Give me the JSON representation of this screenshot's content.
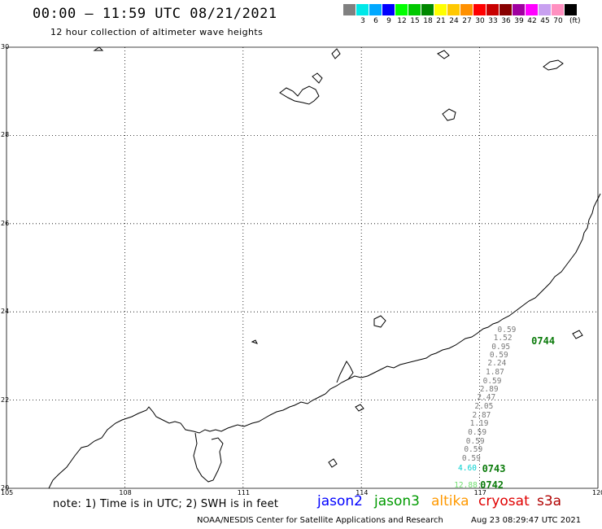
{
  "header": {
    "title": "00:00 – 11:59 UTC 08/21/2021",
    "subtitle": "12 hour collection of altimeter wave heights"
  },
  "legend": {
    "colors": [
      "#808080",
      "#00e8e8",
      "#00a8ff",
      "#0000ff",
      "#00ff00",
      "#00c800",
      "#008800",
      "#ffff00",
      "#ffc800",
      "#ff9000",
      "#ff0000",
      "#c80000",
      "#880000",
      "#a000a0",
      "#ff00ff",
      "#c8a0f0",
      "#ff90c0",
      "#000000"
    ],
    "labels": [
      "3",
      "6",
      "9",
      "12",
      "15",
      "18",
      "21",
      "24",
      "27",
      "30",
      "33",
      "36",
      "39",
      "42",
      "45",
      "70"
    ],
    "unit": "(ft)"
  },
  "map": {
    "lat_labels": [
      "30",
      "28",
      "26",
      "24",
      "22",
      "20"
    ],
    "lon_labels": [
      "105",
      "108",
      "111",
      "114",
      "117",
      "120"
    ],
    "swh_values": [
      {
        "v": "0.59",
        "lat": 23.58,
        "lon": 117.7,
        "color": "#7a7a7a"
      },
      {
        "v": "1.52",
        "lat": 23.39,
        "lon": 117.6,
        "color": "#7a7a7a"
      },
      {
        "v": "0.95",
        "lat": 23.2,
        "lon": 117.55,
        "color": "#7a7a7a"
      },
      {
        "v": "0.59",
        "lat": 23.01,
        "lon": 117.5,
        "color": "#7a7a7a"
      },
      {
        "v": "2.24",
        "lat": 22.82,
        "lon": 117.45,
        "color": "#7a7a7a"
      },
      {
        "v": "1.87",
        "lat": 22.62,
        "lon": 117.4,
        "color": "#7a7a7a"
      },
      {
        "v": "0.59",
        "lat": 22.42,
        "lon": 117.33,
        "color": "#7a7a7a"
      },
      {
        "v": "2.89",
        "lat": 22.24,
        "lon": 117.25,
        "color": "#7a7a7a"
      },
      {
        "v": "2.47",
        "lat": 22.04,
        "lon": 117.18,
        "color": "#7a7a7a"
      },
      {
        "v": "2.05",
        "lat": 21.85,
        "lon": 117.12,
        "color": "#7a7a7a"
      },
      {
        "v": "2.87",
        "lat": 21.64,
        "lon": 117.06,
        "color": "#7a7a7a"
      },
      {
        "v": "1.19",
        "lat": 21.45,
        "lon": 117.0,
        "color": "#7a7a7a"
      },
      {
        "v": "0.59",
        "lat": 21.25,
        "lon": 116.95,
        "color": "#7a7a7a"
      },
      {
        "v": "0.59",
        "lat": 21.06,
        "lon": 116.9,
        "color": "#7a7a7a"
      },
      {
        "v": "0.59",
        "lat": 20.86,
        "lon": 116.85,
        "color": "#7a7a7a"
      },
      {
        "v": "0.59",
        "lat": 20.66,
        "lon": 116.8,
        "color": "#7a7a7a"
      },
      {
        "v": "4.60",
        "lat": 20.44,
        "lon": 116.7,
        "color": "#00d0d0"
      },
      {
        "v": "12.88",
        "lat": 20.06,
        "lon": 116.6,
        "color": "#70e070"
      }
    ],
    "passes": [
      {
        "label": "0744",
        "lat": 23.34,
        "lon": 118.6
      },
      {
        "label": "0743",
        "lat": 20.45,
        "lon": 117.35
      },
      {
        "label": "0742",
        "lat": 20.07,
        "lon": 117.3
      }
    ]
  },
  "footer": {
    "note": "note: 1) Time is in UTC; 2) SWH is in feet",
    "satellites": [
      {
        "name": "jason2",
        "color": "#0000ff"
      },
      {
        "name": "jason3",
        "color": "#009a00"
      },
      {
        "name": "altika",
        "color": "#ff9900"
      },
      {
        "name": "cryosat",
        "color": "#e00000"
      },
      {
        "name": "s3a",
        "color": "#b00000"
      }
    ],
    "credit": "NOAA/NESDIS Center for Satellite Applications and Research",
    "timestamp": "Aug 23 08:29:47 UTC 2021"
  }
}
